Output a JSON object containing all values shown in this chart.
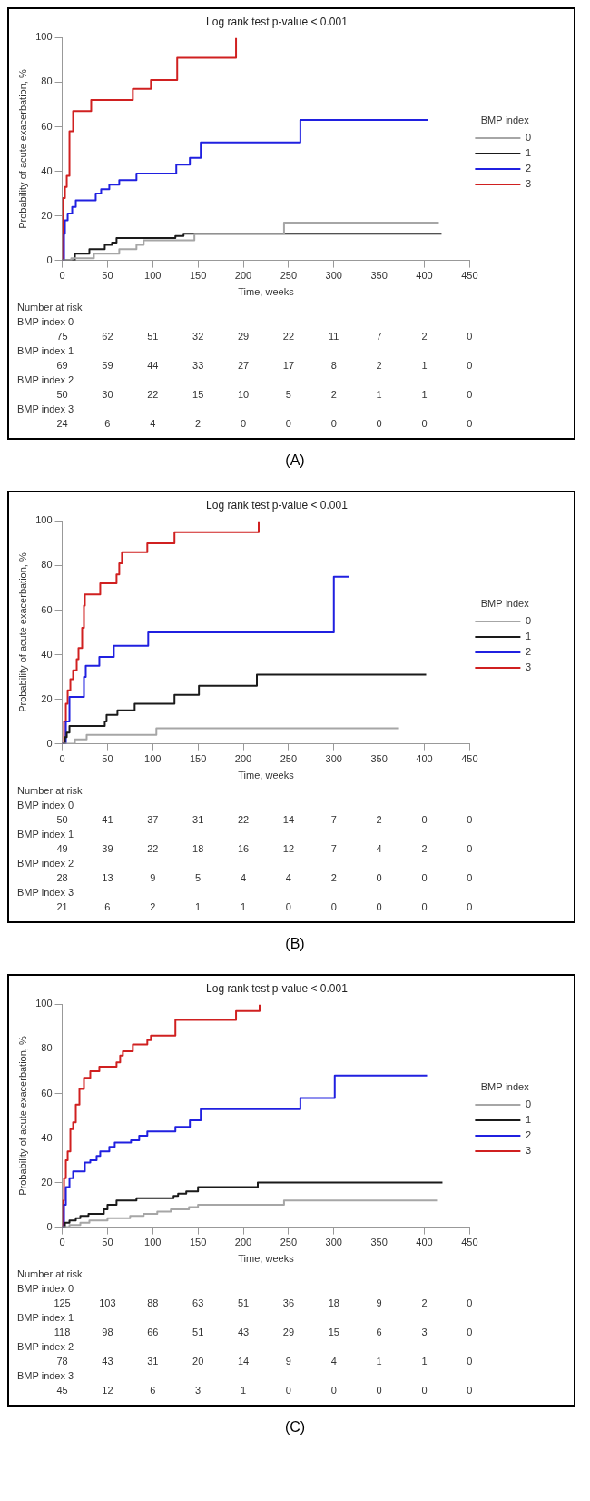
{
  "chart_data": [
    {
      "type": "step",
      "title": "Log rank test p-value < 0.001",
      "xlabel": "Time, weeks",
      "ylabel": "Probability of acute exacerbation, %",
      "legend_title": "BMP index",
      "legend": "right",
      "grid": false,
      "xlim": [
        0,
        450
      ],
      "xticks": [
        0,
        50,
        100,
        150,
        200,
        250,
        300,
        350,
        400,
        450
      ],
      "ylim": [
        0,
        100
      ],
      "yticks": [
        0,
        20,
        40,
        60,
        80,
        100
      ],
      "series": [
        {
          "name": "0",
          "color": "#a6a6a6",
          "x": [
            0,
            10,
            35,
            63,
            82,
            90,
            146,
            245,
            416
          ],
          "values": [
            0,
            1,
            3,
            5,
            7,
            9,
            12,
            17,
            17
          ]
        },
        {
          "name": "1",
          "color": "#1a1a1a",
          "x": [
            0,
            14,
            30,
            47,
            55,
            60,
            125,
            134,
            419
          ],
          "values": [
            0,
            3,
            5,
            7,
            8,
            10,
            11,
            12,
            12
          ]
        },
        {
          "name": "2",
          "color": "#2020e0",
          "x": [
            0,
            2,
            3,
            6,
            11,
            15,
            37,
            43,
            52,
            63,
            82,
            126,
            141,
            153,
            263,
            404
          ],
          "values": [
            0,
            12,
            18,
            21,
            24,
            27,
            30,
            32,
            34,
            36,
            39,
            43,
            46,
            53,
            63,
            63
          ]
        },
        {
          "name": "3",
          "color": "#d02020",
          "x": [
            0,
            1,
            3,
            5,
            8,
            12,
            32,
            78,
            98,
            127,
            192
          ],
          "values": [
            0,
            28,
            33,
            38,
            58,
            67,
            72,
            77,
            81,
            91,
            100
          ]
        }
      ],
      "annotations": [
        "Number at risk",
        "BMP index 0",
        "75 62 51 32 29 22 11 7 2 0",
        "BMP index 1",
        "69 59 44 33 27 17 8 2 1 0",
        "BMP index 2",
        "50 30 22 15 10 5 2 1 1 0",
        "BMP index 3",
        "24 6 4 2 0 0 0 0 0 0",
        "(A)"
      ]
    },
    {
      "type": "step",
      "title": "Log rank test p-value < 0.001",
      "xlabel": "Time, weeks",
      "ylabel": "Probability of acute exacerbation, %",
      "legend_title": "BMP index",
      "legend": "right",
      "grid": false,
      "xlim": [
        0,
        450
      ],
      "xticks": [
        0,
        50,
        100,
        150,
        200,
        250,
        300,
        350,
        400,
        450
      ],
      "ylim": [
        0,
        100
      ],
      "yticks": [
        0,
        20,
        40,
        60,
        80,
        100
      ],
      "series": [
        {
          "name": "0",
          "color": "#a6a6a6",
          "x": [
            0,
            14,
            27,
            104,
            372
          ],
          "values": [
            0,
            2,
            4,
            7,
            7
          ]
        },
        {
          "name": "1",
          "color": "#1a1a1a",
          "x": [
            0,
            3,
            5,
            8,
            47,
            49,
            61,
            80,
            124,
            151,
            215,
            402
          ],
          "values": [
            0,
            3,
            5,
            8,
            10,
            13,
            15,
            18,
            22,
            26,
            31,
            31
          ]
        },
        {
          "name": "2",
          "color": "#2020e0",
          "x": [
            0,
            4,
            8,
            24,
            26,
            41,
            57,
            95,
            300,
            317
          ],
          "values": [
            0,
            10,
            21,
            30,
            35,
            39,
            44,
            50,
            75,
            75
          ]
        },
        {
          "name": "3",
          "color": "#d02020",
          "x": [
            0,
            2,
            4,
            6,
            9,
            12,
            16,
            18,
            22,
            24,
            25,
            42,
            60,
            63,
            66,
            94,
            124,
            217
          ],
          "values": [
            0,
            10,
            18,
            24,
            29,
            33,
            38,
            43,
            52,
            62,
            67,
            72,
            76,
            81,
            86,
            90,
            95,
            100
          ]
        }
      ],
      "annotations": [
        "Number at risk",
        "BMP index 0",
        "50 41 37 31 22 14 7 2 0 0",
        "BMP index 1",
        "49 39 22 18 16 12 7 4 2 0",
        "BMP index 2",
        "28 13 9 5 4 4 2 0 0 0",
        "BMP index 3",
        "21 6 2 1 1 0 0 0 0 0",
        "(B)"
      ]
    },
    {
      "type": "step",
      "title": "Log rank test p-value < 0.001",
      "xlabel": "Time, weeks",
      "ylabel": "Probability of acute exacerbation, %",
      "legend_title": "BMP index",
      "legend": "right",
      "grid": false,
      "xlim": [
        0,
        450
      ],
      "xticks": [
        0,
        50,
        100,
        150,
        200,
        250,
        300,
        350,
        400,
        450
      ],
      "ylim": [
        0,
        100
      ],
      "yticks": [
        0,
        20,
        40,
        60,
        80,
        100
      ],
      "series": [
        {
          "name": "0",
          "color": "#a6a6a6",
          "x": [
            0,
            8,
            20,
            30,
            50,
            75,
            90,
            105,
            120,
            140,
            150,
            245,
            414
          ],
          "values": [
            0,
            1,
            2,
            3,
            4,
            5,
            6,
            7,
            8,
            9,
            10,
            12,
            12
          ]
        },
        {
          "name": "1",
          "color": "#1a1a1a",
          "x": [
            0,
            3,
            8,
            15,
            20,
            29,
            46,
            50,
            60,
            82,
            123,
            128,
            137,
            150,
            216,
            420
          ],
          "values": [
            0,
            2,
            3,
            4,
            5,
            6,
            8,
            10,
            12,
            13,
            14,
            15,
            16,
            18,
            20,
            20
          ]
        },
        {
          "name": "2",
          "color": "#2020e0",
          "x": [
            0,
            2,
            4,
            8,
            12,
            25,
            31,
            38,
            42,
            52,
            58,
            76,
            85,
            94,
            125,
            141,
            153,
            263,
            301,
            403
          ],
          "values": [
            0,
            10,
            18,
            22,
            25,
            29,
            30,
            32,
            34,
            36,
            38,
            39,
            41,
            43,
            45,
            48,
            53,
            58,
            68,
            68
          ]
        },
        {
          "name": "3",
          "color": "#d02020",
          "x": [
            0,
            1,
            2,
            4,
            6,
            9,
            12,
            15,
            19,
            24,
            31,
            41,
            60,
            64,
            67,
            78,
            94,
            98,
            125,
            192,
            218
          ],
          "values": [
            0,
            12,
            22,
            30,
            34,
            44,
            47,
            55,
            62,
            67,
            70,
            72,
            74,
            77,
            79,
            82,
            84,
            86,
            93,
            97,
            100
          ]
        }
      ],
      "annotations": [
        "Number at risk",
        "BMP index 0",
        "125 103 88 63 51 36 18 9 2 0",
        "BMP index 1",
        "118 98 66 51 43 29 15 6 3 0",
        "BMP index 2",
        "78 43 31 20 14 9 4 1 1 0",
        "BMP index 3",
        "45 12 6 3 1 0 0 0 0 0",
        "(C)"
      ]
    }
  ]
}
